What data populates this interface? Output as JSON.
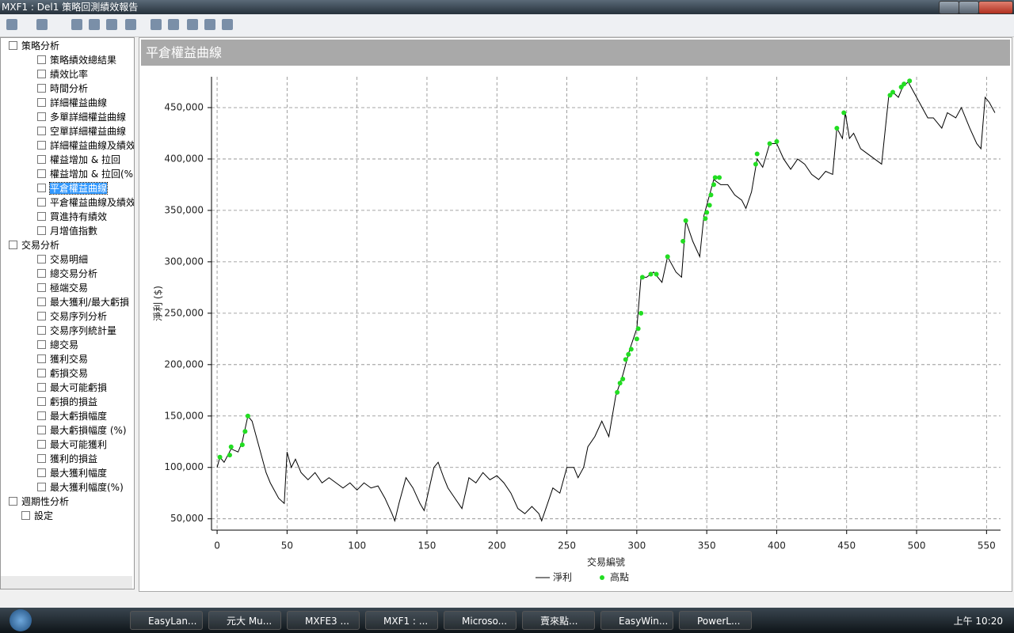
{
  "window": {
    "title": "MXF1 : Del1 策略回測績效報告"
  },
  "tree": [
    {
      "label": "策略分析",
      "expanded": true,
      "children": [
        {
          "label": "策略績效總結果"
        },
        {
          "label": "績效比率"
        },
        {
          "label": "時間分析"
        },
        {
          "label": "詳細權益曲線"
        },
        {
          "label": "多單詳細權益曲線"
        },
        {
          "label": "空單詳細權益曲線"
        },
        {
          "label": "詳細權益曲線及績效"
        },
        {
          "label": "權益增加 & 拉回"
        },
        {
          "label": "權益增加 & 拉回(%)"
        },
        {
          "label": "平倉權益曲線",
          "selected": true
        },
        {
          "label": "平倉權益曲線及績效"
        },
        {
          "label": "買進持有績效"
        },
        {
          "label": "月增值指數"
        }
      ]
    },
    {
      "label": "交易分析",
      "expanded": true,
      "children": [
        {
          "label": "交易明細"
        },
        {
          "label": "總交易分析"
        },
        {
          "label": "極端交易"
        },
        {
          "label": "最大獲利/最大虧損"
        },
        {
          "label": "交易序列分析"
        },
        {
          "label": "交易序列統計量"
        },
        {
          "label": "總交易"
        },
        {
          "label": "獲利交易"
        },
        {
          "label": "虧損交易"
        },
        {
          "label": "最大可能虧損"
        },
        {
          "label": "虧損的損益"
        },
        {
          "label": "最大虧損幅度"
        },
        {
          "label": "最大虧損幅度 (%)"
        },
        {
          "label": "最大可能獲利"
        },
        {
          "label": "獲利的損益"
        },
        {
          "label": "最大獲利幅度"
        },
        {
          "label": "最大獲利幅度(%)"
        }
      ]
    },
    {
      "label": "週期性分析",
      "expanded": false,
      "children": []
    },
    {
      "label": "設定",
      "leaf": true
    }
  ],
  "panel": {
    "title": "平倉權益曲線"
  },
  "taskbar": {
    "items": [
      "EasyLan...",
      "元大 Mu...",
      "MXFE3 ...",
      "MXF1 : ...",
      "Microso...",
      "賣來點...",
      "EasyWin...",
      "PowerL..."
    ],
    "clock": "上午 10:20"
  },
  "chart_data": {
    "type": "line",
    "x_label": "交易編號",
    "y_label": "淨利 ($)",
    "xlim": [
      -4,
      560
    ],
    "ylim": [
      39000,
      480000
    ],
    "xticks": [
      0,
      50,
      100,
      150,
      200,
      250,
      300,
      350,
      400,
      450,
      500,
      550
    ],
    "yticks": [
      {
        "value": 50000,
        "label": "50,000"
      },
      {
        "value": 100000,
        "label": "100,000"
      },
      {
        "value": 150000,
        "label": "150,000"
      },
      {
        "value": 200000,
        "label": "200,000"
      },
      {
        "value": 250000,
        "label": "250,000"
      },
      {
        "value": 300000,
        "label": "300,000"
      },
      {
        "value": 350000,
        "label": "350,000"
      },
      {
        "value": 400000,
        "label": "400,000"
      },
      {
        "value": 450000,
        "label": "450,000"
      }
    ],
    "grid": true,
    "series": [
      {
        "name": "淨利",
        "color": "#000000",
        "mode": "line",
        "x": [
          0,
          2,
          5,
          10,
          15,
          18,
          22,
          25,
          28,
          32,
          35,
          38,
          40,
          44,
          48,
          50,
          53,
          56,
          60,
          65,
          70,
          75,
          80,
          85,
          90,
          95,
          100,
          105,
          110,
          115,
          120,
          125,
          127,
          130,
          135,
          140,
          145,
          148,
          150,
          155,
          158,
          162,
          165,
          170,
          175,
          180,
          185,
          190,
          195,
          200,
          205,
          210,
          215,
          220,
          225,
          230,
          232,
          235,
          240,
          245,
          250,
          255,
          258,
          262,
          265,
          270,
          275,
          280,
          285,
          290,
          295,
          300,
          303,
          307,
          312,
          318,
          322,
          328,
          332,
          335,
          340,
          345,
          348,
          352,
          355,
          360,
          365,
          370,
          375,
          378,
          382,
          386,
          390,
          395,
          400,
          405,
          410,
          415,
          420,
          425,
          430,
          435,
          440,
          443,
          447,
          449,
          452,
          455,
          460,
          465,
          470,
          475,
          480,
          483,
          487,
          490,
          494,
          498,
          502,
          508,
          512,
          518,
          522,
          528,
          532,
          538,
          543,
          546,
          549,
          552,
          556
        ],
        "values": [
          100000,
          110000,
          105000,
          118000,
          115000,
          125000,
          150000,
          145000,
          130000,
          110000,
          95000,
          85000,
          80000,
          70000,
          65000,
          115000,
          100000,
          108000,
          95000,
          88000,
          95000,
          85000,
          90000,
          85000,
          80000,
          85000,
          78000,
          85000,
          80000,
          82000,
          70000,
          55000,
          48000,
          65000,
          90000,
          80000,
          65000,
          58000,
          70000,
          100000,
          105000,
          90000,
          80000,
          70000,
          60000,
          90000,
          85000,
          95000,
          88000,
          92000,
          85000,
          75000,
          60000,
          55000,
          62000,
          55000,
          48000,
          60000,
          80000,
          75000,
          100000,
          100000,
          90000,
          100000,
          120000,
          130000,
          145000,
          130000,
          170000,
          190000,
          215000,
          235000,
          285000,
          285000,
          290000,
          280000,
          305000,
          290000,
          285000,
          340000,
          320000,
          305000,
          345000,
          365000,
          380000,
          375000,
          375000,
          365000,
          360000,
          352000,
          368000,
          400000,
          392000,
          415000,
          415000,
          400000,
          390000,
          400000,
          395000,
          385000,
          380000,
          388000,
          385000,
          430000,
          420000,
          445000,
          420000,
          425000,
          410000,
          405000,
          400000,
          395000,
          460000,
          465000,
          460000,
          470000,
          475000,
          465000,
          455000,
          440000,
          440000,
          430000,
          445000,
          440000,
          450000,
          430000,
          415000,
          410000,
          460000,
          455000,
          445000
        ]
      },
      {
        "name": "高點",
        "color": "#22dd22",
        "mode": "markers",
        "x": [
          2,
          9,
          10,
          18,
          20,
          22,
          286,
          288,
          290,
          292,
          294,
          296,
          300,
          301,
          303,
          304,
          310,
          314,
          322,
          333,
          335,
          349,
          350,
          352,
          353,
          355,
          356,
          359,
          385,
          386,
          395,
          400,
          443,
          448,
          481,
          483,
          489,
          491,
          495
        ],
        "values": [
          110000,
          112000,
          120000,
          122000,
          135000,
          150000,
          173000,
          182000,
          186000,
          205000,
          210000,
          215000,
          225000,
          235000,
          250000,
          285000,
          288000,
          288000,
          305000,
          320000,
          340000,
          342000,
          348000,
          355000,
          365000,
          375000,
          382000,
          382000,
          395000,
          405000,
          415000,
          417000,
          430000,
          445000,
          462000,
          465000,
          470000,
          473000,
          476000
        ]
      }
    ]
  }
}
